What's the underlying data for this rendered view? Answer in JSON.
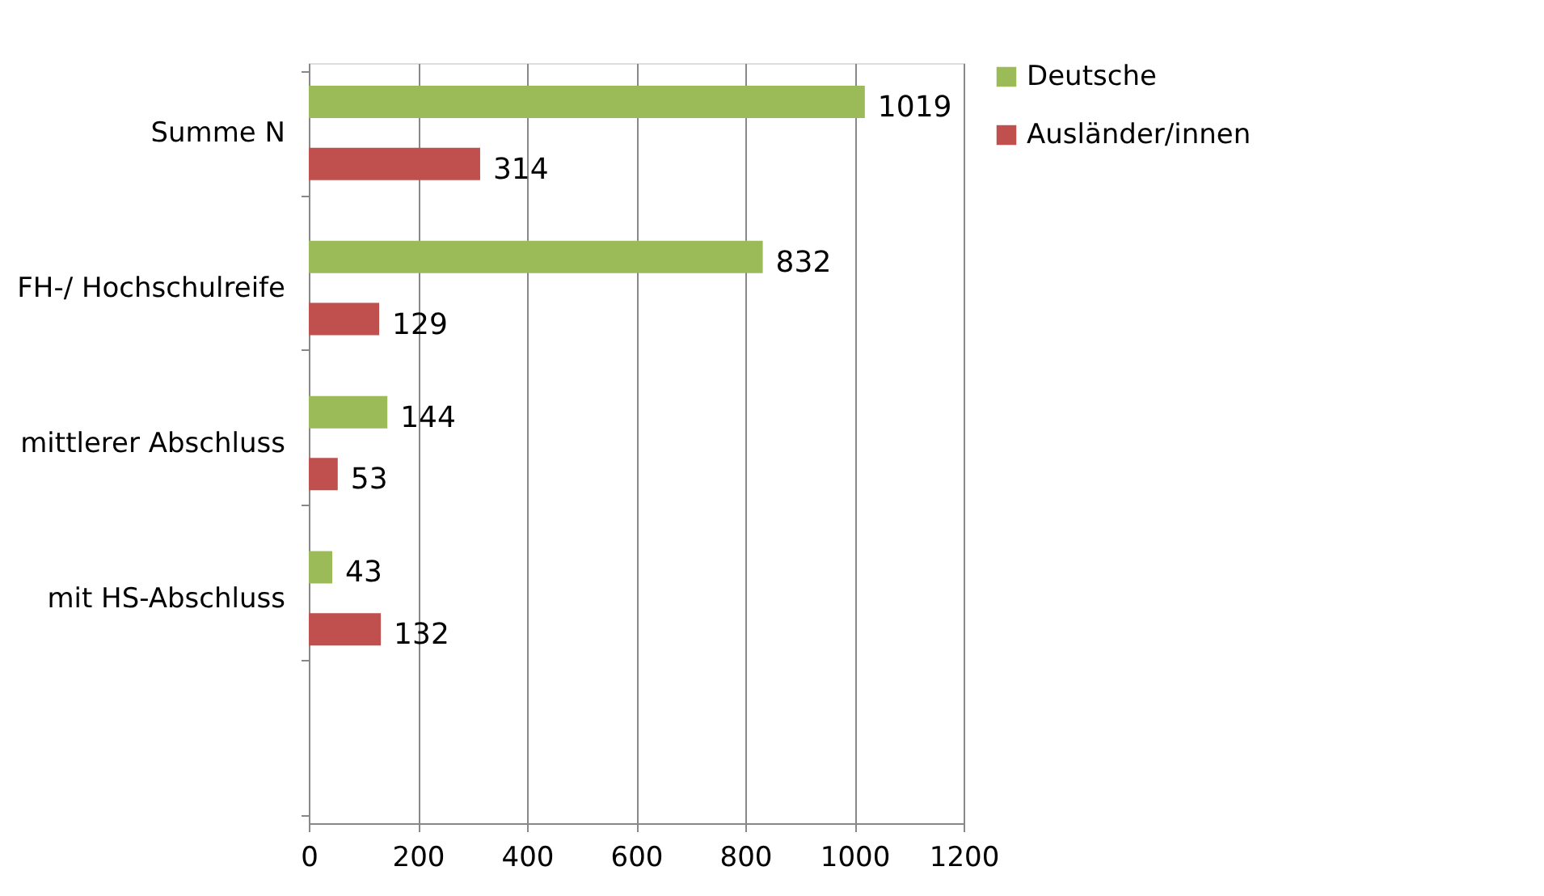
{
  "chart_data": {
    "type": "bar",
    "orientation": "horizontal",
    "categories": [
      "Summe N",
      "FH-/ Hochschulreife",
      "mittlerer Abschluss",
      "mit HS-Abschluss",
      null
    ],
    "series": [
      {
        "name": "Deutsche",
        "color": "#9bbb59",
        "values": [
          1019,
          832,
          144,
          43,
          null
        ]
      },
      {
        "name": "Ausländer/innen",
        "color": "#c0504d",
        "values": [
          314,
          129,
          53,
          132,
          null
        ]
      }
    ],
    "xlim": [
      0,
      1200
    ],
    "xticks": [
      0,
      200,
      400,
      600,
      800,
      1000,
      1200
    ],
    "grid": "x",
    "legend": "right",
    "data_labels": true
  }
}
